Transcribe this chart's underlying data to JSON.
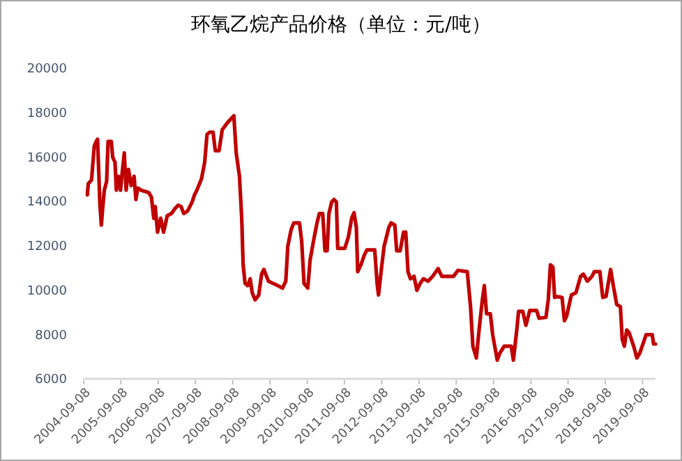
{
  "chart_data": {
    "type": "line",
    "title": "环氧乙烷产品价格（单位：元/吨）",
    "x": [
      "2004-10-14",
      "2004-10-23",
      "2004-11-24",
      "2004-12-21",
      "2005-01-09",
      "2005-01-22",
      "2005-02-14",
      "2005-02-28",
      "2005-03-11",
      "2005-03-29",
      "2005-04-21",
      "2005-05-05",
      "2005-06-06",
      "2005-06-19",
      "2005-07-12",
      "2005-07-25",
      "2005-08-13",
      "2005-09-04",
      "2005-09-19",
      "2005-10-11",
      "2005-10-29",
      "2005-11-21",
      "2005-12-18",
      "2006-01-15",
      "2006-02-02",
      "2006-02-20",
      "2006-03-26",
      "2006-06-07",
      "2006-07-04",
      "2006-07-27",
      "2006-08-10",
      "2006-09-02",
      "2006-10-03",
      "2006-10-31",
      "2006-12-06",
      "2007-01-16",
      "2007-02-17",
      "2007-03-24",
      "2007-04-20",
      "2007-05-17",
      "2007-06-23",
      "2007-08-07",
      "2007-08-30",
      "2007-09-22",
      "2007-11-07",
      "2007-12-08",
      "2007-12-31",
      "2008-01-27",
      "2008-02-28",
      "2008-03-21",
      "2008-04-27",
      "2008-05-28",
      "2008-07-17",
      "2008-09-19",
      "2008-10-12",
      "2008-11-13",
      "2008-12-05",
      "2008-12-19",
      "2009-01-07",
      "2009-02-03",
      "2009-02-26",
      "2009-03-18",
      "2009-04-15",
      "2009-05-21",
      "2009-06-18",
      "2009-07-10",
      "2009-08-24",
      "2009-10-09",
      "2009-11-24",
      "2010-01-09",
      "2010-02-10",
      "2010-03-02",
      "2010-04-03",
      "2010-04-30",
      "2010-06-24",
      "2010-07-16",
      "2010-08-08",
      "2010-09-14",
      "2010-10-06",
      "2010-11-08",
      "2010-12-13",
      "2011-01-05",
      "2011-02-07",
      "2011-03-01",
      "2011-03-22",
      "2011-04-09",
      "2011-05-06",
      "2011-05-29",
      "2011-06-21",
      "2011-07-04",
      "2011-09-11",
      "2011-10-17",
      "2011-11-18",
      "2011-12-11",
      "2012-01-03",
      "2012-01-16",
      "2012-02-17",
      "2012-03-19",
      "2012-04-15",
      "2012-07-01",
      "2012-07-24",
      "2012-08-07",
      "2012-09-09",
      "2012-10-01",
      "2012-11-16",
      "2012-12-08",
      "2013-01-14",
      "2013-02-01",
      "2013-03-07",
      "2013-04-09",
      "2013-05-01",
      "2013-05-23",
      "2013-06-16",
      "2013-07-21",
      "2013-08-18",
      "2013-09-19",
      "2013-10-21",
      "2013-12-05",
      "2014-01-20",
      "2014-03-14",
      "2014-04-19",
      "2014-08-11",
      "2014-09-26",
      "2014-12-25",
      "2015-01-26",
      "2015-02-18",
      "2015-03-24",
      "2015-04-17",
      "2015-05-22",
      "2015-06-10",
      "2015-07-02",
      "2015-08-08",
      "2015-08-31",
      "2015-10-15",
      "2015-11-08",
      "2015-12-22",
      "2016-02-29",
      "2016-03-21",
      "2016-04-23",
      "2016-05-11",
      "2016-06-21",
      "2016-07-22",
      "2016-08-28",
      "2016-11-04",
      "2016-11-27",
      "2017-02-03",
      "2017-02-26",
      "2017-03-19",
      "2017-04-12",
      "2017-04-29",
      "2017-05-17",
      "2017-07-11",
      "2017-08-03",
      "2017-08-25",
      "2017-10-10",
      "2017-11-24",
      "2018-01-09",
      "2018-02-05",
      "2018-03-16",
      "2018-05-01",
      "2018-05-23",
      "2018-07-17",
      "2018-08-14",
      "2018-09-15",
      "2018-10-30",
      "2018-11-22",
      "2018-12-28",
      "2019-02-03",
      "2019-02-21",
      "2019-03-14",
      "2019-04-06",
      "2019-04-28",
      "2019-06-13",
      "2019-07-14",
      "2019-08-11",
      "2019-09-12",
      "2019-10-13",
      "2019-12-12",
      "2019-12-25",
      "2020-01-13"
    ],
    "series": [
      {
        "color": "#c00000",
        "values": [
          14290,
          14800,
          14960,
          16500,
          16700,
          16800,
          13870,
          12930,
          13560,
          14500,
          14900,
          16700,
          16700,
          16000,
          15760,
          14500,
          15130,
          14500,
          15230,
          16180,
          14500,
          15440,
          14710,
          15130,
          14080,
          14600,
          14500,
          14400,
          14190,
          13240,
          13770,
          12610,
          13240,
          12610,
          13350,
          13450,
          13660,
          13830,
          13770,
          13450,
          13560,
          13970,
          14290,
          14500,
          15020,
          15760,
          17020,
          17120,
          17120,
          16280,
          16280,
          17230,
          17540,
          17860,
          16180,
          15130,
          13240,
          11140,
          10300,
          10200,
          10510,
          9880,
          9560,
          9770,
          10720,
          10930,
          10400,
          10300,
          10200,
          10090,
          10400,
          11980,
          12720,
          13030,
          13030,
          12190,
          10300,
          10090,
          11350,
          12190,
          13030,
          13450,
          13450,
          11770,
          11770,
          13450,
          13970,
          14080,
          13970,
          11880,
          11880,
          12400,
          13240,
          13490,
          12820,
          10830,
          11140,
          11560,
          11810,
          11810,
          10300,
          9780,
          11140,
          11980,
          12820,
          13030,
          12930,
          11770,
          11770,
          12610,
          12610,
          10830,
          10510,
          10620,
          9990,
          10300,
          10510,
          10400,
          10620,
          10970,
          10620,
          10620,
          10890,
          10830,
          9250,
          7470,
          6940,
          8090,
          9570,
          10200,
          8930,
          8930,
          7990,
          6840,
          7150,
          7470,
          7470,
          6840,
          8200,
          9040,
          9040,
          8410,
          9080,
          9080,
          8730,
          8770,
          9570,
          11140,
          11040,
          9670,
          9710,
          9670,
          8620,
          8830,
          9780,
          9880,
          10620,
          10720,
          10400,
          10620,
          10830,
          10830,
          9670,
          9710,
          10930,
          10300,
          9360,
          9250,
          7780,
          7470,
          8200,
          8090,
          7470,
          6940,
          7150,
          7570,
          7990,
          7990,
          7570,
          7570
        ]
      }
    ],
    "xlim": [
      "2004-09-08",
      "2020-01-13"
    ],
    "xticks": [
      "2004-09-08",
      "2005-09-08",
      "2006-09-08",
      "2007-09-08",
      "2008-09-08",
      "2009-09-08",
      "2010-09-08",
      "2011-09-08",
      "2012-09-08",
      "2013-09-08",
      "2014-09-08",
      "2015-09-08",
      "2016-09-08",
      "2017-09-08",
      "2018-09-08",
      "2019-09-08"
    ],
    "ylim": [
      6000,
      20000
    ],
    "yticks": [
      6000,
      8000,
      10000,
      12000,
      14000,
      16000,
      18000,
      20000
    ],
    "grid": false,
    "marker": "none",
    "line_style": "solid"
  }
}
